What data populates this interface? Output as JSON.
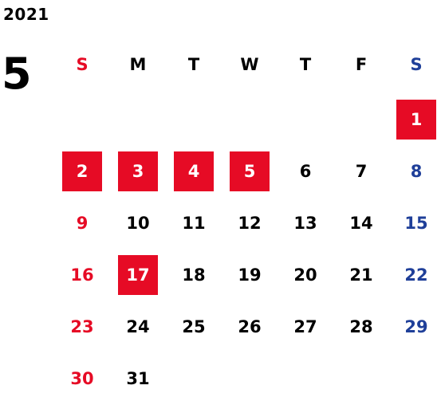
{
  "header": {
    "year": "2021",
    "month": "5"
  },
  "colors": {
    "sunday": "#e60b25",
    "saturday": "#1f3f99",
    "weekday": "#000000",
    "highlight_bg": "#e60b25",
    "highlight_text": "#ffffff"
  },
  "weekdays": [
    "S",
    "M",
    "T",
    "W",
    "T",
    "F",
    "S"
  ],
  "first_weekday_index": 6,
  "days": [
    {
      "label": "1",
      "highlighted": true
    },
    {
      "label": "2",
      "highlighted": true
    },
    {
      "label": "3",
      "highlighted": true
    },
    {
      "label": "4",
      "highlighted": true
    },
    {
      "label": "5",
      "highlighted": true
    },
    {
      "label": "6",
      "highlighted": false
    },
    {
      "label": "7",
      "highlighted": false
    },
    {
      "label": "8",
      "highlighted": false
    },
    {
      "label": "9",
      "highlighted": false
    },
    {
      "label": "10",
      "highlighted": false
    },
    {
      "label": "11",
      "highlighted": false
    },
    {
      "label": "12",
      "highlighted": false
    },
    {
      "label": "13",
      "highlighted": false
    },
    {
      "label": "14",
      "highlighted": false
    },
    {
      "label": "15",
      "highlighted": false
    },
    {
      "label": "16",
      "highlighted": false
    },
    {
      "label": "17",
      "highlighted": true
    },
    {
      "label": "18",
      "highlighted": false
    },
    {
      "label": "19",
      "highlighted": false
    },
    {
      "label": "20",
      "highlighted": false
    },
    {
      "label": "21",
      "highlighted": false
    },
    {
      "label": "22",
      "highlighted": false
    },
    {
      "label": "23",
      "highlighted": false
    },
    {
      "label": "24",
      "highlighted": false
    },
    {
      "label": "25",
      "highlighted": false
    },
    {
      "label": "26",
      "highlighted": false
    },
    {
      "label": "27",
      "highlighted": false
    },
    {
      "label": "28",
      "highlighted": false
    },
    {
      "label": "29",
      "highlighted": false
    },
    {
      "label": "30",
      "highlighted": false
    },
    {
      "label": "31",
      "highlighted": false
    }
  ]
}
